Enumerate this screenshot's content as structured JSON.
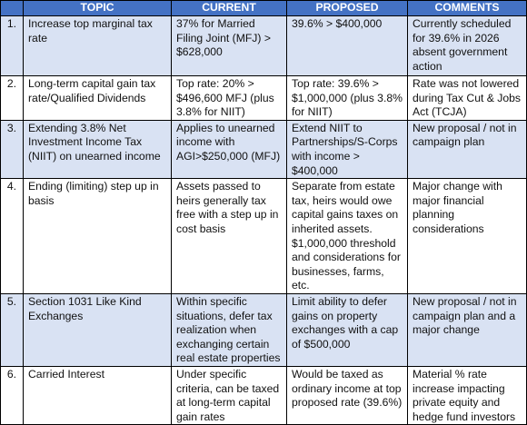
{
  "headers": [
    "",
    "TOPIC",
    "CURRENT",
    "PROPOSED",
    "COMMENTS"
  ],
  "rows": [
    {
      "num": "1.",
      "topic": "Increase top marginal tax rate",
      "current": "37% for Married Filing Joint (MFJ) > $628,000",
      "proposed": "39.6% > $400,000",
      "comments": "Currently scheduled for 39.6% in 2026 absent government action"
    },
    {
      "num": "2.",
      "topic": "Long-term capital gain tax rate/Qualified Dividends",
      "current": "Top rate:  20% > $496,600 MFJ (plus 3.8% for NIIT)",
      "proposed": "Top rate:  39.6% > $1,000,000 (plus 3.8% for NIIT)",
      "comments": "Rate was not lowered during Tax Cut & Jobs Act (TCJA)"
    },
    {
      "num": "3.",
      "topic": "Extending 3.8% Net Investment Income Tax (NIIT) on unearned income",
      "current": "Applies to unearned income with AGI>$250,000 (MFJ)",
      "proposed": "Extend NIIT to Partnerships/S-Corps with income > $400,000",
      "comments": "New proposal / not in campaign plan"
    },
    {
      "num": "4.",
      "topic": "Ending (limiting) step up in basis",
      "current": "Assets passed to heirs generally tax free with a step up in cost basis",
      "proposed": "Separate from estate tax, heirs would owe capital gains taxes on inherited assets. $1,000,000 threshold and considerations for businesses, farms, etc.",
      "comments": "Major change with major financial planning considerations"
    },
    {
      "num": "5.",
      "topic": "Section 1031 Like Kind Exchanges",
      "current": "Within specific situations, defer tax realization when exchanging certain real estate properties",
      "proposed": "Limit ability to defer gains on property exchanges with a cap of $500,000",
      "comments": "New proposal / not in campaign plan and a major change"
    },
    {
      "num": "6.",
      "topic": "Carried Interest",
      "current": "Under specific criteria, can be taxed at long-term capital gain rates",
      "proposed": "Would be taxed as ordinary income at top proposed rate (39.6%)",
      "comments": "Material % rate increase impacting private equity and hedge fund investors"
    }
  ]
}
